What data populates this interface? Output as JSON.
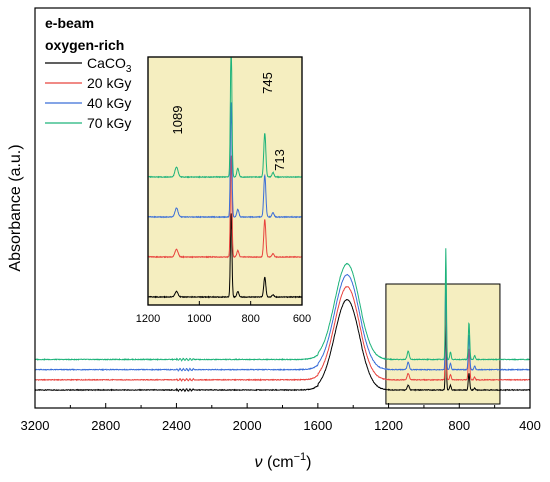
{
  "chart_data": {
    "type": "line",
    "title": "",
    "xlabel": {
      "symbol": "ν",
      "unit_prefix": " (cm",
      "unit_exp": "−1",
      "unit_suffix": ")"
    },
    "ylabel": "Absorbance (a.u.)",
    "xlim": [
      3200,
      400
    ],
    "x_reversed": true,
    "x_ticks": [
      3200,
      2800,
      2400,
      2000,
      1600,
      1200,
      800,
      400
    ],
    "y_ticks_shown": false,
    "legend": {
      "placement": "top-left",
      "title_lines": [
        "e-beam",
        "oxygen-rich"
      ],
      "entries": [
        {
          "name": "CaCO",
          "subscript": "3",
          "color": "#000000"
        },
        {
          "name": "20 kGy",
          "subscript": "",
          "color": "#e8433e"
        },
        {
          "name": "40 kGy",
          "subscript": "",
          "color": "#3a6ed8"
        },
        {
          "name": "70 kGy",
          "subscript": "",
          "color": "#1db37a"
        }
      ]
    },
    "series": [
      {
        "name": "CaCO3",
        "color": "#000000",
        "offset": 0
      },
      {
        "name": "20 kGy",
        "color": "#e8433e",
        "offset": 1
      },
      {
        "name": "40 kGy",
        "color": "#3a6ed8",
        "offset": 2
      },
      {
        "name": "70 kGy",
        "color": "#1db37a",
        "offset": 3
      }
    ],
    "peaks": [
      {
        "x": 1420,
        "height": [
          3.4,
          3.5,
          3.55,
          3.6
        ],
        "width": 65
      },
      {
        "x": 1460,
        "height": [
          1.2,
          1.25,
          1.3,
          1.3
        ],
        "width": 70
      },
      {
        "x": 1089,
        "height": [
          0.25,
          0.35,
          0.4,
          0.45
        ],
        "width": 6
      },
      {
        "x": 876,
        "height": [
          3.8,
          4.6,
          5.2,
          6.0
        ],
        "width": 3
      },
      {
        "x": 850,
        "height": [
          0.25,
          0.3,
          0.35,
          0.4
        ],
        "width": 4
      },
      {
        "x": 745,
        "height": [
          0.9,
          1.7,
          1.9,
          2.0
        ],
        "width": 4
      },
      {
        "x": 713,
        "height": [
          0.1,
          0.15,
          0.2,
          0.2
        ],
        "width": 4
      }
    ],
    "baseline_level": [
      0.0,
      0.55,
      1.1,
      1.65
    ],
    "inset": {
      "xlim": [
        1200,
        600
      ],
      "x_ticks": [
        1200,
        1000,
        800,
        600
      ],
      "annotations": [
        {
          "label": "1089",
          "x": 1089
        },
        {
          "label": "745",
          "x": 745
        },
        {
          "label": "713",
          "x": 713
        }
      ],
      "background_color": "#f5eec0"
    },
    "highlight_region": {
      "xrange": [
        1215,
        570
      ],
      "color": "#f5eec0"
    }
  }
}
